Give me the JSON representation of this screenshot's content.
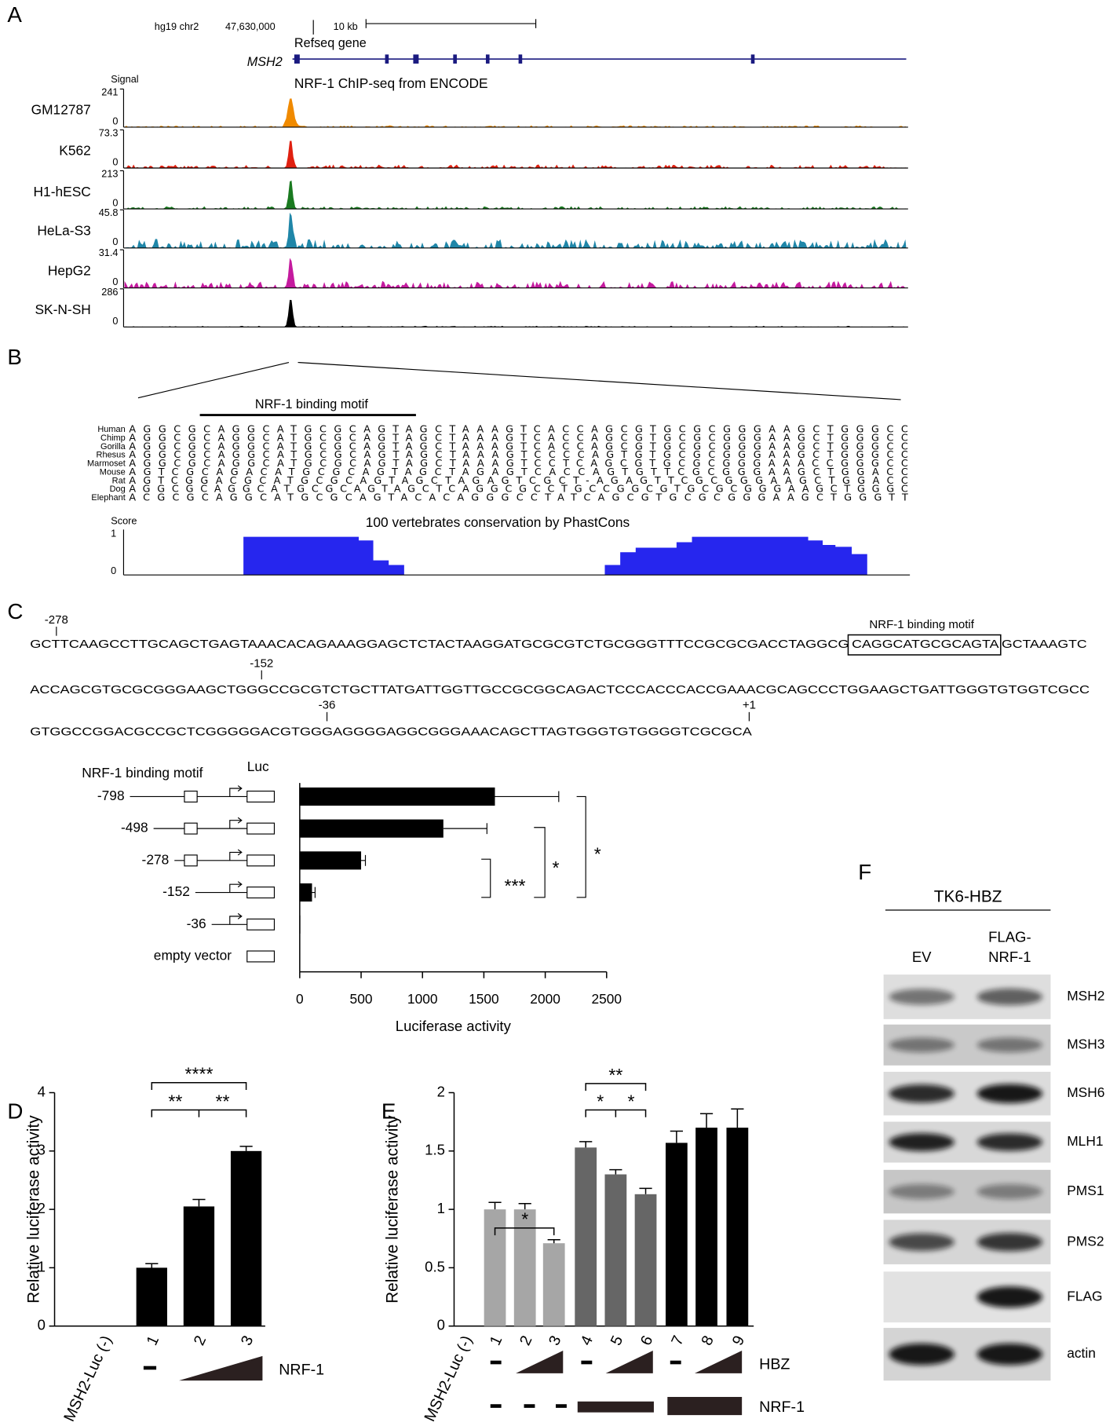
{
  "panel_labels": [
    "A",
    "B",
    "C",
    "D",
    "E",
    "F"
  ],
  "panel_a": {
    "assembly": "hg19 chr2",
    "position": "47,630,000",
    "scale": "10 kb",
    "gene_track": "Refseq gene",
    "gene": "MSH2",
    "signal_label": "Signal",
    "title": "NRF-1 ChIP-seq from ENCODE",
    "tracks": [
      {
        "name": "GM12787",
        "color": "#f08a00",
        "max": 241,
        "min": 0
      },
      {
        "name": "K562",
        "color": "#e02010",
        "max": 73.3,
        "min": 0
      },
      {
        "name": "H1-hESC",
        "color": "#1a7a20",
        "max": 213,
        "min": 0
      },
      {
        "name": "HeLa-S3",
        "color": "#1f86a8",
        "max": 45.8,
        "min": 0
      },
      {
        "name": "HepG2",
        "color": "#c41a9e",
        "max": 31.4,
        "min": 0
      },
      {
        "name": "SK-N-SH",
        "color": "#000000",
        "max": 286,
        "min": 0
      }
    ]
  },
  "panel_b": {
    "motif_label": "NRF-1 binding motif",
    "alignment": [
      {
        "species": "Human",
        "sequence": "AGGCGCAGGCATGCGCAGTAGCTAAAGTCACCAGCGTGCGCGGGAAGCTGGGCC"
      },
      {
        "species": "Chimp",
        "sequence": "AGGCGCAGGCATGCGCAGTAGCTAAAGTCACCAGCGTGCGCGGGAAGCTGGGCC"
      },
      {
        "species": "Gorilla",
        "sequence": "AGGCGCAGGCATGCGCAGTAGCTAAAGTCACCAGCGTGCGCGGGAAGCTGGGCC"
      },
      {
        "species": "Rhesus",
        "sequence": "AGGCGCAGGCATGCGCAGTAGCTAAAGTCCCCAGTGTGCGCGGGAAGCTGGGCC"
      },
      {
        "species": "Marmoset",
        "sequence": "AGGCGCAGGCATGCGCAGTAGCTAAAGTCCTCAGCGTGCGCGGGAAACCGGGCC"
      },
      {
        "species": "Mouse",
        "sequence": "AGTCGCAGACATGCGCAGTAGCTAGAGTCACCAGTGTTCGCGGGAAGCTGGACC"
      },
      {
        "species": "Rat",
        "sequence": "AGTCGGACGCATGCGCAGTAGCTAGAGTCGCT-AGAGTTCGCGGGAAGCTGGACC"
      },
      {
        "species": "Dog",
        "sequence": "AGGCGCAGGCATGCGCAGTAGCTCAGGCGCCTGCCGGCGTGCGCGGGAAGCTGGGC"
      },
      {
        "species": "Elephant",
        "sequence": "ACGCGCAGGCATGCGCAGTACACAGGGCCTATCAGCGTGCGCGGGAAGCTGGGTT"
      }
    ],
    "score_label": "Score",
    "score_max": 1,
    "score_min": 0,
    "conservation_title": "100 vertebrates conservation by PhastCons"
  },
  "panel_c_sequence": {
    "motif_label": "NRF-1 binding motif",
    "lines": [
      [
        "GCTTCAAGCCTTGCAGCTGAGTAAACACAGAAAGGAGCTCTACTAAGGATGCGCGTCTGCGGGTTTCCGCGCGACCTAGGCG",
        "CAGGCATGCGCAGTA",
        "GCTAAAGTC"
      ],
      [
        "ACCAGCGTGCGCGGGAAGCTGGGCCGCGTCTGCTTATGATTGGTTGCCGCGGCAGACTCCCACCCACCGAAACGCAGCCCTGGAAGCTGATTGGGTGTGGTCGCC"
      ],
      [
        "GTGGCCGGACGCCGCTCGGGGGACGTGGGAGGGGAGGCGGGAAACAGCTTAGTGGGTGTGGGGTCGCGCA"
      ]
    ],
    "markers": [
      "-278",
      "-152",
      "-36",
      "+1"
    ]
  },
  "chart_data": [
    {
      "type": "hbar",
      "categories": [
        "-798",
        "-498",
        "-278",
        "-152",
        "-36",
        "empty vector"
      ],
      "values": [
        1590,
        1170,
        500,
        100,
        5,
        0
      ],
      "errors": [
        520,
        355,
        35,
        25,
        0,
        0
      ],
      "color": "#000000",
      "xlim": [
        0,
        2500
      ],
      "xticks": [
        0,
        500,
        1000,
        1500,
        2000,
        2500
      ],
      "xlabel": "Luciferase activity",
      "construct_labels": [
        "NRF-1 binding motif",
        "Luc"
      ],
      "significance": [
        "***",
        "*",
        "*"
      ]
    },
    {
      "type": "bar",
      "categories": [
        "MSH2-Luc (-)",
        "1",
        "2",
        "3"
      ],
      "values": [
        null,
        1.0,
        2.05,
        3.0
      ],
      "errors": [
        null,
        0.07,
        0.12,
        0.08
      ],
      "color": "#000000",
      "ylim": [
        0,
        4
      ],
      "yticks": [
        0,
        1,
        2,
        3,
        4
      ],
      "ylabel": "Relative luciferase activity",
      "significance": [
        "****",
        "**",
        "**"
      ],
      "treatment_labels": [
        "NRF-1"
      ]
    },
    {
      "type": "bar",
      "categories": [
        "MSH2-Luc (-)",
        "1",
        "2",
        "3",
        "4",
        "5",
        "6",
        "7",
        "8",
        "9"
      ],
      "values": [
        null,
        1.0,
        1.0,
        0.71,
        1.53,
        1.3,
        1.13,
        1.57,
        1.7,
        1.7
      ],
      "errors": [
        null,
        0.06,
        0.05,
        0.03,
        0.05,
        0.04,
        0.05,
        0.1,
        0.12,
        0.16
      ],
      "colors": [
        null,
        "#a6a6a6",
        "#a6a6a6",
        "#a6a6a6",
        "#666666",
        "#666666",
        "#666666",
        "#000000",
        "#000000",
        "#000000"
      ],
      "ylim": [
        0,
        2
      ],
      "yticks": [
        0,
        0.5,
        1,
        1.5,
        2
      ],
      "ylabel": "Relative luciferase activity",
      "significance": [
        "*",
        "**",
        "*",
        "*"
      ],
      "treatment_labels": [
        "HBZ",
        "NRF-1"
      ]
    }
  ],
  "panel_f": {
    "cell_line": "TK6-HBZ",
    "lanes": [
      [
        "EV"
      ],
      [
        "FLAG-",
        "NRF-1"
      ]
    ],
    "proteins": [
      "MSH2",
      "MSH3",
      "MSH6",
      "MLH1",
      "PMS1",
      "PMS2",
      "FLAG",
      "actin"
    ]
  }
}
